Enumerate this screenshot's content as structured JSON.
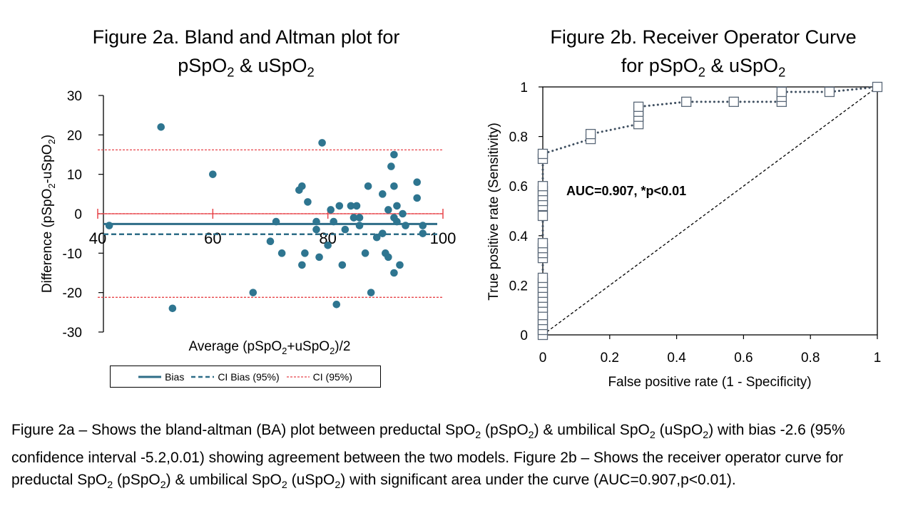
{
  "caption": {
    "p1": "Figure 2a – Shows the bland-altman (BA) plot between preductal SpO",
    "p2": " (pSpO",
    "p3": ") & umbilical SpO",
    "p4": " (uSpO",
    "p5": ") with bias -2.6 (95% confidence interval -5.2,0.01) showing agreement between the two models. Figure 2b – Shows the receiver operator curve for preductal SpO",
    "p6": " (pSpO",
    "p7": ") & umbilical SpO",
    "p8": " (uSpO",
    "p9": ") with significant area under the curve (AUC=0.907,p<0.01).",
    "sub": "2"
  },
  "chart_data": [
    {
      "type": "scatter",
      "title_parts": [
        "Figure 2a. Bland and Altman plot for",
        "pSpO",
        "2",
        " & uSpO",
        "2"
      ],
      "xlabel_parts": [
        "Average (pSpO",
        "2",
        "+uSpO",
        "2",
        ")/2"
      ],
      "ylabel_parts": [
        "Difference (pSpO",
        "2",
        "-uSpO",
        "2",
        ")"
      ],
      "xlim": [
        40,
        100
      ],
      "ylim": [
        -30,
        30
      ],
      "xticks": [
        40,
        60,
        80,
        100
      ],
      "yticks": [
        30,
        20,
        10,
        0,
        -10,
        -20,
        -30
      ],
      "ytick_labels": [
        "30",
        "20",
        "10",
        "0",
        "-10",
        "-20",
        "-30"
      ],
      "xtick_labels": [
        "40",
        "60",
        "80",
        "100"
      ],
      "points": [
        [
          42,
          -3
        ],
        [
          51,
          22
        ],
        [
          53,
          -24
        ],
        [
          60,
          10
        ],
        [
          67,
          -20
        ],
        [
          70,
          -7
        ],
        [
          71,
          -2
        ],
        [
          72,
          -10
        ],
        [
          75,
          6
        ],
        [
          75.5,
          7
        ],
        [
          75.5,
          -13
        ],
        [
          76,
          -10
        ],
        [
          76.5,
          3
        ],
        [
          78,
          -2
        ],
        [
          78,
          -4
        ],
        [
          78.5,
          -11
        ],
        [
          79,
          18
        ],
        [
          80,
          -8
        ],
        [
          80.5,
          1
        ],
        [
          81,
          -2
        ],
        [
          81.5,
          -23
        ],
        [
          82,
          2
        ],
        [
          82.5,
          -13
        ],
        [
          83,
          -4
        ],
        [
          84,
          2
        ],
        [
          84.5,
          -1
        ],
        [
          85,
          2
        ],
        [
          85.5,
          -3
        ],
        [
          85.5,
          -1
        ],
        [
          86.5,
          -10
        ],
        [
          87,
          7
        ],
        [
          87.5,
          -20
        ],
        [
          88.5,
          -6
        ],
        [
          89.5,
          5
        ],
        [
          89.5,
          -5
        ],
        [
          90,
          -10
        ],
        [
          90.5,
          -11
        ],
        [
          90.5,
          1
        ],
        [
          91,
          12
        ],
        [
          91.5,
          15
        ],
        [
          91.5,
          7
        ],
        [
          91.5,
          -1
        ],
        [
          91.5,
          -15
        ],
        [
          92,
          2
        ],
        [
          92,
          -2
        ],
        [
          92.5,
          -13
        ],
        [
          93,
          0
        ],
        [
          93.5,
          -3
        ],
        [
          95.5,
          8
        ],
        [
          95.5,
          4
        ],
        [
          96.5,
          -3
        ],
        [
          96.5,
          -5
        ]
      ],
      "bias": -2.6,
      "ci_bias": [
        -5.2,
        0.01
      ],
      "loa": [
        -21.2,
        16.2
      ],
      "legend": [
        "Bias",
        "CI Bias (95%)",
        "CI (95%)"
      ],
      "colors": {
        "points": "#2e7590",
        "bias": "#2e6d87",
        "ci_bias": "#2e6d87",
        "loa": "#e8454a"
      }
    },
    {
      "type": "line",
      "title_parts": [
        "Figure 2b. Receiver Operator Curve",
        "for pSpO",
        "2",
        " & uSpO",
        "2"
      ],
      "xlabel": "False positive rate (1 - Specificity)",
      "ylabel": "True positive rate (Sensitivity)",
      "xlim": [
        0,
        1
      ],
      "ylim": [
        0,
        1
      ],
      "xticks": [
        0,
        0.2,
        0.4,
        0.6,
        0.8,
        1
      ],
      "xtick_labels": [
        "0",
        "0.2",
        "0.4",
        "0.6",
        "0.8",
        "1"
      ],
      "yticks": [
        0,
        0.2,
        0.4,
        0.6,
        0.8,
        1
      ],
      "ytick_labels": [
        "0",
        "0.2",
        "0.4",
        "0.6",
        "0.8",
        "1"
      ],
      "annotation": "AUC=0.907, *p<0.01",
      "roc_points": [
        [
          0,
          0
        ],
        [
          0,
          0.02
        ],
        [
          0,
          0.04
        ],
        [
          0,
          0.06
        ],
        [
          0,
          0.08
        ],
        [
          0,
          0.11
        ],
        [
          0,
          0.13
        ],
        [
          0,
          0.15
        ],
        [
          0,
          0.17
        ],
        [
          0,
          0.19
        ],
        [
          0,
          0.21
        ],
        [
          0,
          0.23
        ],
        [
          0,
          0.31
        ],
        [
          0,
          0.33
        ],
        [
          0,
          0.35
        ],
        [
          0,
          0.37
        ],
        [
          0,
          0.48
        ],
        [
          0,
          0.52
        ],
        [
          0,
          0.54
        ],
        [
          0,
          0.56
        ],
        [
          0,
          0.58
        ],
        [
          0,
          0.6
        ],
        [
          0,
          0.71
        ],
        [
          0,
          0.73
        ],
        [
          0.143,
          0.79
        ],
        [
          0.143,
          0.81
        ],
        [
          0.286,
          0.85
        ],
        [
          0.286,
          0.88
        ],
        [
          0.286,
          0.9
        ],
        [
          0.286,
          0.92
        ],
        [
          0.429,
          0.94
        ],
        [
          0.571,
          0.94
        ],
        [
          0.714,
          0.94
        ],
        [
          0.714,
          0.96
        ],
        [
          0.714,
          0.98
        ],
        [
          0.857,
          0.98
        ],
        [
          1,
          1
        ]
      ],
      "reference_line": [
        [
          0,
          0
        ],
        [
          1,
          1
        ]
      ],
      "colors": {
        "curve": "#3f4f60",
        "marker_stroke": "#5a6878",
        "reference": "#000000"
      }
    }
  ]
}
